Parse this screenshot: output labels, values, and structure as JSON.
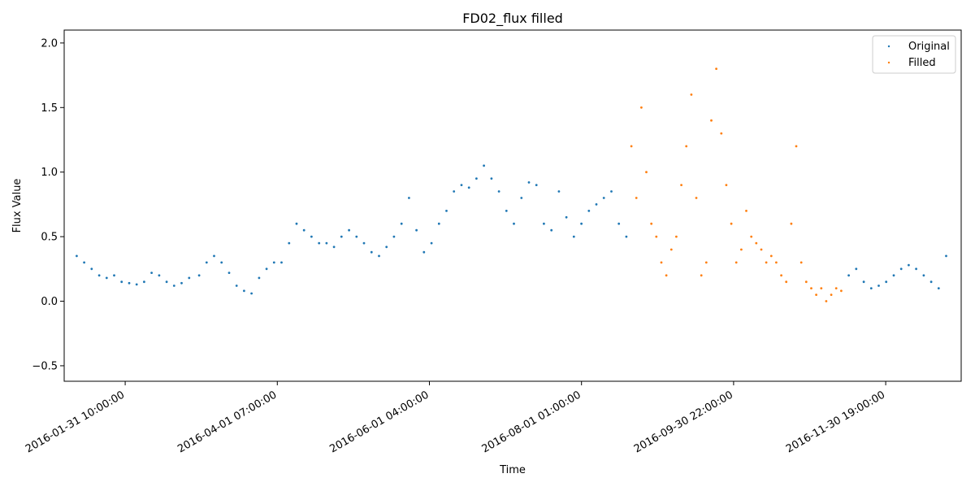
{
  "chart_data": {
    "type": "scatter",
    "title": "FD02_flux filled",
    "xlabel": "Time",
    "ylabel": "Flux Value",
    "x_axis_type": "datetime",
    "xlim": [
      "2016-01-07T00:00:00",
      "2016-12-31T00:00:00"
    ],
    "ylim": [
      -0.62,
      2.1
    ],
    "x_ticks": [
      {
        "value": "2016-01-31T10:00:00",
        "label": "2016-01-31 10:00:00"
      },
      {
        "value": "2016-04-01T07:00:00",
        "label": "2016-04-01 07:00:00"
      },
      {
        "value": "2016-06-01T04:00:00",
        "label": "2016-06-01 04:00:00"
      },
      {
        "value": "2016-08-01T01:00:00",
        "label": "2016-08-01 01:00:00"
      },
      {
        "value": "2016-09-30T22:00:00",
        "label": "2016-09-30 22:00:00"
      },
      {
        "value": "2016-11-30T19:00:00",
        "label": "2016-11-30 19:00:00"
      }
    ],
    "y_ticks": [
      {
        "value": -0.5,
        "label": "−0.5"
      },
      {
        "value": 0.0,
        "label": "0.0"
      },
      {
        "value": 0.5,
        "label": "0.5"
      },
      {
        "value": 1.0,
        "label": "1.0"
      },
      {
        "value": 1.5,
        "label": "1.5"
      },
      {
        "value": 2.0,
        "label": "2.0"
      }
    ],
    "grid": false,
    "legend_position": "top-right",
    "series": [
      {
        "name": "Original",
        "color": "#1f77b4",
        "x": [
          "2016-01-12",
          "2016-01-15",
          "2016-01-18",
          "2016-01-21",
          "2016-01-24",
          "2016-01-27",
          "2016-01-30",
          "2016-02-02",
          "2016-02-05",
          "2016-02-08",
          "2016-02-11",
          "2016-02-14",
          "2016-02-17",
          "2016-02-20",
          "2016-02-23",
          "2016-02-26",
          "2016-03-01",
          "2016-03-04",
          "2016-03-07",
          "2016-03-10",
          "2016-03-13",
          "2016-03-16",
          "2016-03-19",
          "2016-03-22",
          "2016-03-25",
          "2016-03-28",
          "2016-03-31",
          "2016-04-03",
          "2016-04-06",
          "2016-04-09",
          "2016-04-12",
          "2016-04-15",
          "2016-04-18",
          "2016-04-21",
          "2016-04-24",
          "2016-04-27",
          "2016-04-30",
          "2016-05-03",
          "2016-05-06",
          "2016-05-09",
          "2016-05-12",
          "2016-05-15",
          "2016-05-18",
          "2016-05-21",
          "2016-05-24",
          "2016-05-27",
          "2016-05-30",
          "2016-06-02",
          "2016-06-05",
          "2016-06-08",
          "2016-06-11",
          "2016-06-14",
          "2016-06-17",
          "2016-06-20",
          "2016-06-23",
          "2016-06-26",
          "2016-06-29",
          "2016-07-02",
          "2016-07-05",
          "2016-07-08",
          "2016-07-11",
          "2016-07-14",
          "2016-07-17",
          "2016-07-20",
          "2016-07-23",
          "2016-07-26",
          "2016-07-29",
          "2016-08-01",
          "2016-08-04",
          "2016-08-07",
          "2016-08-10",
          "2016-08-13",
          "2016-08-16",
          "2016-08-19",
          "2016-11-16",
          "2016-11-19",
          "2016-11-22",
          "2016-11-25",
          "2016-11-28",
          "2016-12-01",
          "2016-12-04",
          "2016-12-07",
          "2016-12-10",
          "2016-12-13",
          "2016-12-16",
          "2016-12-19",
          "2016-12-22",
          "2016-12-25"
        ],
        "y": [
          0.35,
          0.3,
          0.25,
          0.2,
          0.18,
          0.2,
          0.15,
          0.14,
          0.13,
          0.15,
          0.22,
          0.2,
          0.15,
          0.12,
          0.14,
          0.18,
          0.2,
          0.3,
          0.35,
          0.3,
          0.22,
          0.12,
          0.08,
          0.06,
          0.18,
          0.25,
          0.3,
          0.3,
          0.45,
          0.6,
          0.55,
          0.5,
          0.45,
          0.45,
          0.42,
          0.5,
          0.55,
          0.5,
          0.45,
          0.38,
          0.35,
          0.42,
          0.5,
          0.6,
          0.8,
          0.55,
          0.38,
          0.45,
          0.6,
          0.7,
          0.85,
          0.9,
          0.88,
          0.95,
          1.05,
          0.95,
          0.85,
          0.7,
          0.6,
          0.8,
          0.92,
          0.9,
          0.6,
          0.55,
          0.85,
          0.65,
          0.5,
          0.6,
          0.7,
          0.75,
          0.8,
          0.85,
          0.6,
          0.5,
          0.2,
          0.25,
          0.15,
          0.1,
          0.12,
          0.15,
          0.2,
          0.25,
          0.28,
          0.25,
          0.2,
          0.15,
          0.1,
          0.35
        ]
      },
      {
        "name": "Filled",
        "color": "#ff7f0e",
        "x": [
          "2016-08-21",
          "2016-08-23",
          "2016-08-25",
          "2016-08-27",
          "2016-08-29",
          "2016-08-31",
          "2016-09-02",
          "2016-09-04",
          "2016-09-06",
          "2016-09-08",
          "2016-09-10",
          "2016-09-12",
          "2016-09-14",
          "2016-09-16",
          "2016-09-18",
          "2016-09-20",
          "2016-09-22",
          "2016-09-24",
          "2016-09-26",
          "2016-09-28",
          "2016-09-30",
          "2016-10-02",
          "2016-10-04",
          "2016-10-06",
          "2016-10-08",
          "2016-10-10",
          "2016-10-12",
          "2016-10-14",
          "2016-10-16",
          "2016-10-18",
          "2016-10-20",
          "2016-10-22",
          "2016-10-24",
          "2016-10-26",
          "2016-10-28",
          "2016-10-30",
          "2016-11-01",
          "2016-11-03",
          "2016-11-05",
          "2016-11-07",
          "2016-11-09",
          "2016-11-11",
          "2016-11-13"
        ],
        "y": [
          1.2,
          0.8,
          1.5,
          1.0,
          0.6,
          0.5,
          0.3,
          0.2,
          0.4,
          0.5,
          0.9,
          1.2,
          1.6,
          0.8,
          0.2,
          0.3,
          1.4,
          1.8,
          1.3,
          0.9,
          0.6,
          0.3,
          0.4,
          0.7,
          0.5,
          0.45,
          0.4,
          0.3,
          0.35,
          0.3,
          0.2,
          0.15,
          0.6,
          1.2,
          0.3,
          0.15,
          0.1,
          0.05,
          0.1,
          0.0,
          0.05,
          0.1,
          0.08
        ]
      }
    ]
  }
}
